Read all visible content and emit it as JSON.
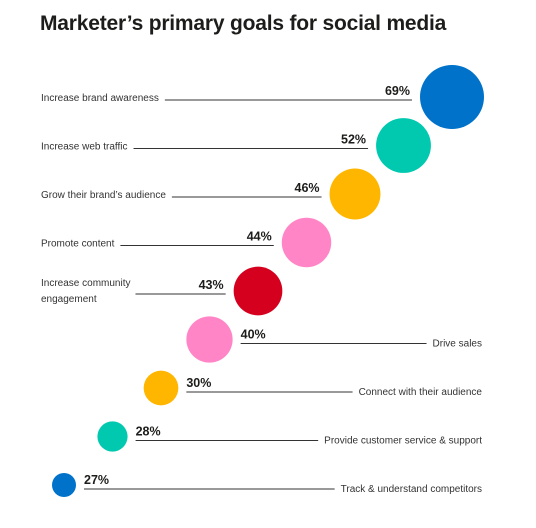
{
  "title": "Marketer’s primary goals for social media",
  "chart_data": {
    "type": "bubble",
    "title": "Marketer’s primary goals for social media",
    "value_format": "percent",
    "items": [
      {
        "label": "Increase brand awareness",
        "value": 69,
        "display": "69%",
        "color": "#0072c9",
        "label_side": "left"
      },
      {
        "label": "Increase web traffic",
        "value": 52,
        "display": "52%",
        "color": "#00c9b0",
        "label_side": "left"
      },
      {
        "label": "Grow their brand’s audience",
        "value": 46,
        "display": "46%",
        "color": "#ffb600",
        "label_side": "left"
      },
      {
        "label": "Promote content",
        "value": 44,
        "display": "44%",
        "color": "#ff85c7",
        "label_side": "left"
      },
      {
        "label": "Increase community engagement",
        "label_lines": [
          "Increase community",
          "engagement"
        ],
        "value": 43,
        "display": "43%",
        "color": "#d4001e",
        "label_side": "left"
      },
      {
        "label": "Drive sales",
        "value": 40,
        "display": "40%",
        "color": "#ff85c7",
        "label_side": "right"
      },
      {
        "label": "Connect with their audience",
        "value": 30,
        "display": "30%",
        "color": "#ffb600",
        "label_side": "right"
      },
      {
        "label": "Provide customer service & support",
        "value": 28,
        "display": "28%",
        "color": "#00c9b0",
        "label_side": "right"
      },
      {
        "label": "Track & understand competitors",
        "value": 27,
        "display": "27%",
        "color": "#0072c9",
        "label_side": "right"
      }
    ]
  }
}
